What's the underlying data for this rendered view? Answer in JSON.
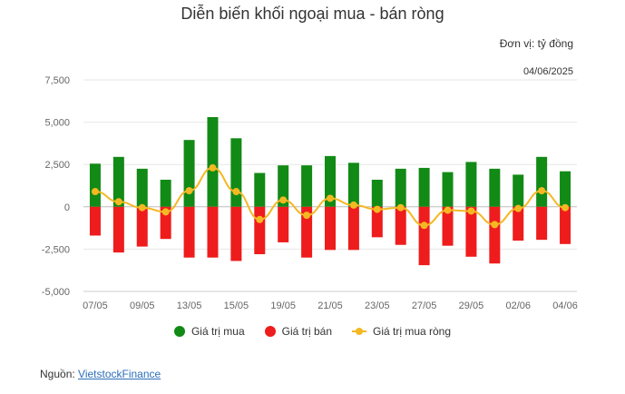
{
  "colors": {
    "buy": "#128a16",
    "sell": "#ee1c1c",
    "net": "#f4b822",
    "grid": "#e6e6e6",
    "axis": "#cccccc",
    "text": "#666666"
  },
  "header": {
    "title": "Diễn biến khối ngoại mua - bán ròng",
    "unit": "Đơn vị: tỷ đồng",
    "date": "04/06/2025"
  },
  "legend": {
    "buy": "Giá trị mua",
    "sell": "Giá trị bán",
    "net": "Giá trị mua ròng"
  },
  "source": {
    "label": "Nguồn: ",
    "link": "VietstockFinance"
  },
  "chart_data": {
    "type": "bar",
    "categories": [
      "07/05",
      "08/05",
      "09/05",
      "12/05",
      "13/05",
      "14/05",
      "15/05",
      "16/05",
      "19/05",
      "20/05",
      "21/05",
      "22/05",
      "23/05",
      "26/05",
      "27/05",
      "28/05",
      "29/05",
      "30/05",
      "02/06",
      "03/06",
      "04/06"
    ],
    "x_tick_labels": [
      "07/05",
      "",
      "09/05",
      "",
      "13/05",
      "",
      "15/05",
      "",
      "19/05",
      "",
      "21/05",
      "",
      "23/05",
      "",
      "27/05",
      "",
      "29/05",
      "",
      "02/06",
      "",
      "04/06"
    ],
    "series": [
      {
        "name": "Giá trị mua",
        "kind": "bar",
        "values": [
          2550,
          2950,
          2250,
          1600,
          3950,
          5300,
          4050,
          2000,
          2450,
          2450,
          3000,
          2600,
          1600,
          2250,
          2300,
          2050,
          2650,
          2250,
          1900,
          2950,
          2100
        ]
      },
      {
        "name": "Giá trị bán",
        "kind": "bar",
        "values": [
          -1700,
          -2700,
          -2350,
          -1900,
          -3000,
          -3000,
          -3200,
          -2800,
          -2100,
          -3000,
          -2550,
          -2550,
          -1800,
          -2250,
          -3450,
          -2300,
          -2950,
          -3350,
          -2000,
          -1950,
          -2200
        ]
      },
      {
        "name": "Giá trị mua ròng",
        "kind": "line",
        "values": [
          900,
          300,
          -50,
          -300,
          950,
          2300,
          900,
          -750,
          400,
          -500,
          500,
          100,
          -150,
          -50,
          -1100,
          -200,
          -250,
          -1050,
          -100,
          950,
          -50
        ]
      }
    ],
    "ylim": [
      -5000,
      7500
    ],
    "yticks": [
      -5000,
      -2500,
      0,
      2500,
      5000,
      7500
    ],
    "ytick_labels": [
      "-5,000",
      "-2,500",
      "0",
      "2,500",
      "5,000",
      "7,500"
    ],
    "grid": true,
    "legend_position": "bottom"
  }
}
